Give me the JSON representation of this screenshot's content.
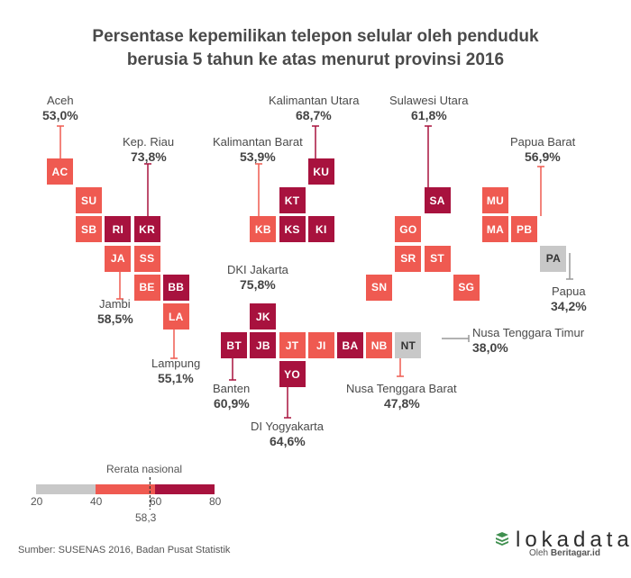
{
  "chart_data": {
    "type": "tile-map",
    "title_line1": "Persentase kepemilikan telepon selular oleh penduduk",
    "title_line2": "berusia 5 tahun ke atas menurut provinsi 2016",
    "colors": {
      "low": "#c8c8c8",
      "mid": "#ef5a51",
      "high": "#a8123e"
    },
    "tiles": [
      {
        "code": "AC",
        "col": 0,
        "row": 0,
        "cls": "mid"
      },
      {
        "code": "SU",
        "col": 1,
        "row": 1,
        "cls": "mid"
      },
      {
        "code": "SB",
        "col": 1,
        "row": 2,
        "cls": "mid"
      },
      {
        "code": "RI",
        "col": 2,
        "row": 2,
        "cls": "high"
      },
      {
        "code": "KR",
        "col": 3,
        "row": 2,
        "cls": "high"
      },
      {
        "code": "JA",
        "col": 2,
        "row": 3,
        "cls": "mid"
      },
      {
        "code": "SS",
        "col": 3,
        "row": 3,
        "cls": "mid"
      },
      {
        "code": "BE",
        "col": 3,
        "row": 4,
        "cls": "mid"
      },
      {
        "code": "BB",
        "col": 4,
        "row": 4,
        "cls": "high"
      },
      {
        "code": "LA",
        "col": 4,
        "row": 5,
        "cls": "mid"
      },
      {
        "code": "JK",
        "col": 7,
        "row": 5,
        "cls": "high"
      },
      {
        "code": "BT",
        "col": 6,
        "row": 6,
        "cls": "high"
      },
      {
        "code": "JB",
        "col": 7,
        "row": 6,
        "cls": "high"
      },
      {
        "code": "JT",
        "col": 8,
        "row": 6,
        "cls": "mid"
      },
      {
        "code": "JI",
        "col": 9,
        "row": 6,
        "cls": "mid"
      },
      {
        "code": "YO",
        "col": 8,
        "row": 7,
        "cls": "high"
      },
      {
        "code": "BA",
        "col": 10,
        "row": 6,
        "cls": "high"
      },
      {
        "code": "NB",
        "col": 11,
        "row": 6,
        "cls": "mid"
      },
      {
        "code": "NT",
        "col": 12,
        "row": 6,
        "cls": "low"
      },
      {
        "code": "KU",
        "col": 9,
        "row": 0,
        "cls": "high"
      },
      {
        "code": "KT",
        "col": 8,
        "row": 1,
        "cls": "high"
      },
      {
        "code": "KB",
        "col": 7,
        "row": 2,
        "cls": "mid"
      },
      {
        "code": "KS",
        "col": 8,
        "row": 2,
        "cls": "high"
      },
      {
        "code": "KI",
        "col": 9,
        "row": 2,
        "cls": "high"
      },
      {
        "code": "SA",
        "col": 13,
        "row": 1,
        "cls": "high"
      },
      {
        "code": "GO",
        "col": 12,
        "row": 2,
        "cls": "mid"
      },
      {
        "code": "SR",
        "col": 12,
        "row": 3,
        "cls": "mid"
      },
      {
        "code": "ST",
        "col": 13,
        "row": 3,
        "cls": "mid"
      },
      {
        "code": "SN",
        "col": 11,
        "row": 4,
        "cls": "mid"
      },
      {
        "code": "SG",
        "col": 14,
        "row": 4,
        "cls": "mid"
      },
      {
        "code": "MU",
        "col": 15,
        "row": 1,
        "cls": "mid"
      },
      {
        "code": "MA",
        "col": 15,
        "row": 2,
        "cls": "mid"
      },
      {
        "code": "PB",
        "col": 16,
        "row": 2,
        "cls": "mid"
      },
      {
        "code": "PA",
        "col": 17,
        "row": 3,
        "cls": "low"
      }
    ],
    "annotations": [
      {
        "name": "Aceh",
        "value": "53,0%",
        "code": "AC"
      },
      {
        "name": "Kep. Riau",
        "value": "73,8%",
        "code": "KR"
      },
      {
        "name": "Jambi",
        "value": "58,5%",
        "code": "JA"
      },
      {
        "name": "Lampung",
        "value": "55,1%",
        "code": "LA"
      },
      {
        "name": "Kalimantan Utara",
        "value": "68,7%",
        "code": "KU"
      },
      {
        "name": "Kalimantan Barat",
        "value": "53,9%",
        "code": "KB"
      },
      {
        "name": "Sulawesi Utara",
        "value": "61,8%",
        "code": "SA"
      },
      {
        "name": "Papua Barat",
        "value": "56,9%",
        "code": "PB"
      },
      {
        "name": "Papua",
        "value": "34,2%",
        "code": "PA"
      },
      {
        "name": "DKI Jakarta",
        "value": "75,8%",
        "code": "JK"
      },
      {
        "name": "Banten",
        "value": "60,9%",
        "code": "BT"
      },
      {
        "name": "DI Yogyakarta",
        "value": "64,6%",
        "code": "YO"
      },
      {
        "name": "Nusa Tenggara Barat",
        "value": "47,8%",
        "code": "NB"
      },
      {
        "name": "Nusa Tenggara Timur",
        "value": "38,0%",
        "code": "NT"
      }
    ],
    "legend": {
      "title": "Rerata nasional",
      "ticks": [
        "20",
        "40",
        "60",
        "80"
      ],
      "range": [
        20,
        80
      ],
      "bins": [
        [
          20,
          40,
          "low"
        ],
        [
          40,
          60,
          "mid"
        ],
        [
          60,
          80,
          "high"
        ]
      ],
      "national_average": 58.3,
      "national_average_label": "58,3"
    }
  },
  "footer": {
    "source": "Sumber: SUSENAS 2016, Badan Pusat Statistik"
  },
  "brand": {
    "name": "lokadata",
    "sub_prefix": "Oleh ",
    "sub_name": "Beritagar.id"
  }
}
